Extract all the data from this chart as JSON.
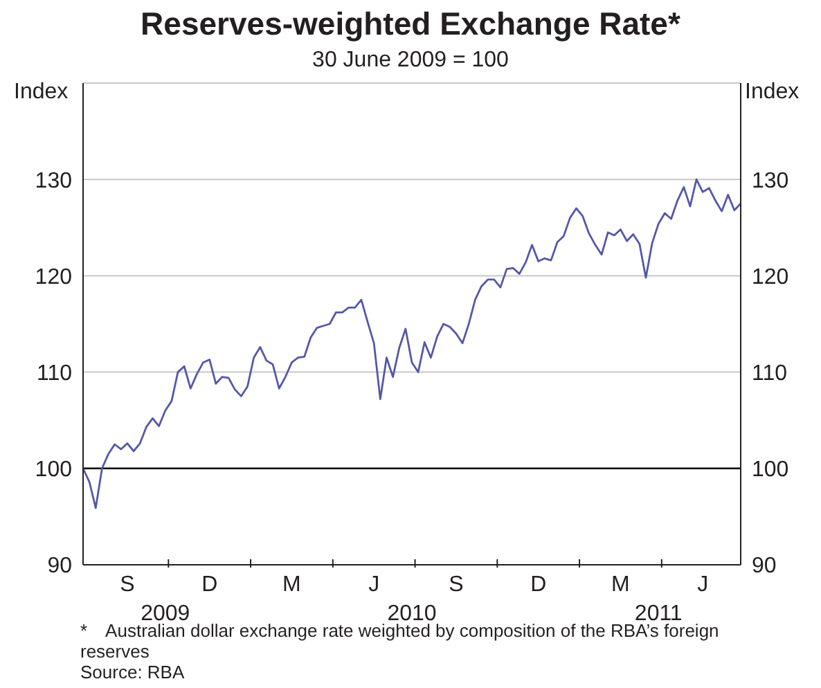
{
  "chart_data": {
    "type": "line",
    "title": "Reserves-weighted Exchange Rate*",
    "subtitle": "30 June 2009 = 100",
    "ylabel": "Index",
    "y2label": "Index",
    "categories": [
      null,
      null,
      null,
      null,
      null,
      null,
      null,
      "S",
      null,
      null,
      null,
      null,
      null,
      "2009",
      null,
      null,
      null,
      null,
      null,
      null,
      "D",
      null,
      null,
      null,
      null,
      null,
      null,
      null,
      null,
      null,
      null,
      null,
      null,
      "M",
      null,
      null,
      null,
      null,
      null,
      null,
      null,
      null,
      null,
      null,
      null,
      null,
      "J",
      null,
      null,
      null,
      null,
      null,
      "2010",
      null,
      null,
      null,
      null,
      null,
      null,
      "S",
      null,
      null,
      null,
      null,
      null,
      null,
      null,
      null,
      null,
      null,
      null,
      null,
      "D",
      null,
      null,
      null,
      null,
      null,
      null,
      null,
      null,
      null,
      null,
      null,
      null,
      "M",
      null,
      null,
      null,
      null,
      null,
      "2011",
      null,
      null,
      null,
      null,
      null,
      null,
      "J",
      null,
      null,
      null,
      null,
      null,
      null
    ],
    "series": [
      {
        "color": "#5558a8",
        "values": [
          100,
          98.6,
          95.9,
          100,
          101.5,
          102.5,
          102,
          102.6,
          101.8,
          102.6,
          104.3,
          105.2,
          104.4,
          106,
          107,
          110,
          110.6,
          108.3,
          109.8,
          111,
          111.3,
          108.8,
          109.5,
          109.4,
          108.2,
          107.5,
          108.5,
          111.5,
          112.6,
          111.2,
          110.8,
          108.3,
          109.5,
          111,
          111.5,
          111.6,
          113.6,
          114.6,
          114.8,
          115,
          116.2,
          116.2,
          116.7,
          116.7,
          117.5,
          115.2,
          113,
          107.2,
          111.5,
          109.5,
          112.5,
          114.5,
          111,
          110,
          113.1,
          111.5,
          113.7,
          115,
          114.7,
          114,
          113,
          115,
          117.5,
          118.9,
          119.6,
          119.6,
          118.8,
          120.7,
          120.8,
          120.2,
          121.4,
          123.2,
          121.5,
          121.8,
          121.6,
          123.5,
          124.1,
          126,
          127,
          126.2,
          124.4,
          123.2,
          122.2,
          124.5,
          124.2,
          124.8,
          123.6,
          124.3,
          123.3,
          119.8,
          123.4,
          125.4,
          126.5,
          125.9,
          127.8,
          129.2,
          127.2,
          130,
          128.7,
          129.1,
          127.8,
          126.7,
          128.4,
          126.8,
          127.5
        ]
      }
    ],
    "ylim": [
      90,
      140
    ],
    "yticks": [
      90,
      100,
      110,
      120,
      130
    ],
    "y2lim": [
      90,
      140
    ],
    "y2ticks": [
      90,
      100,
      110,
      120,
      130
    ],
    "grid": "y",
    "marker": "none",
    "line_style": "solid",
    "ref_lines": [
      {
        "axis": "y",
        "value": 100,
        "color": "#000000"
      }
    ],
    "annotations": [
      "* Australian dollar exchange rate weighted by composition of the RBA’s foreign reserves",
      "Source: RBA"
    ]
  }
}
